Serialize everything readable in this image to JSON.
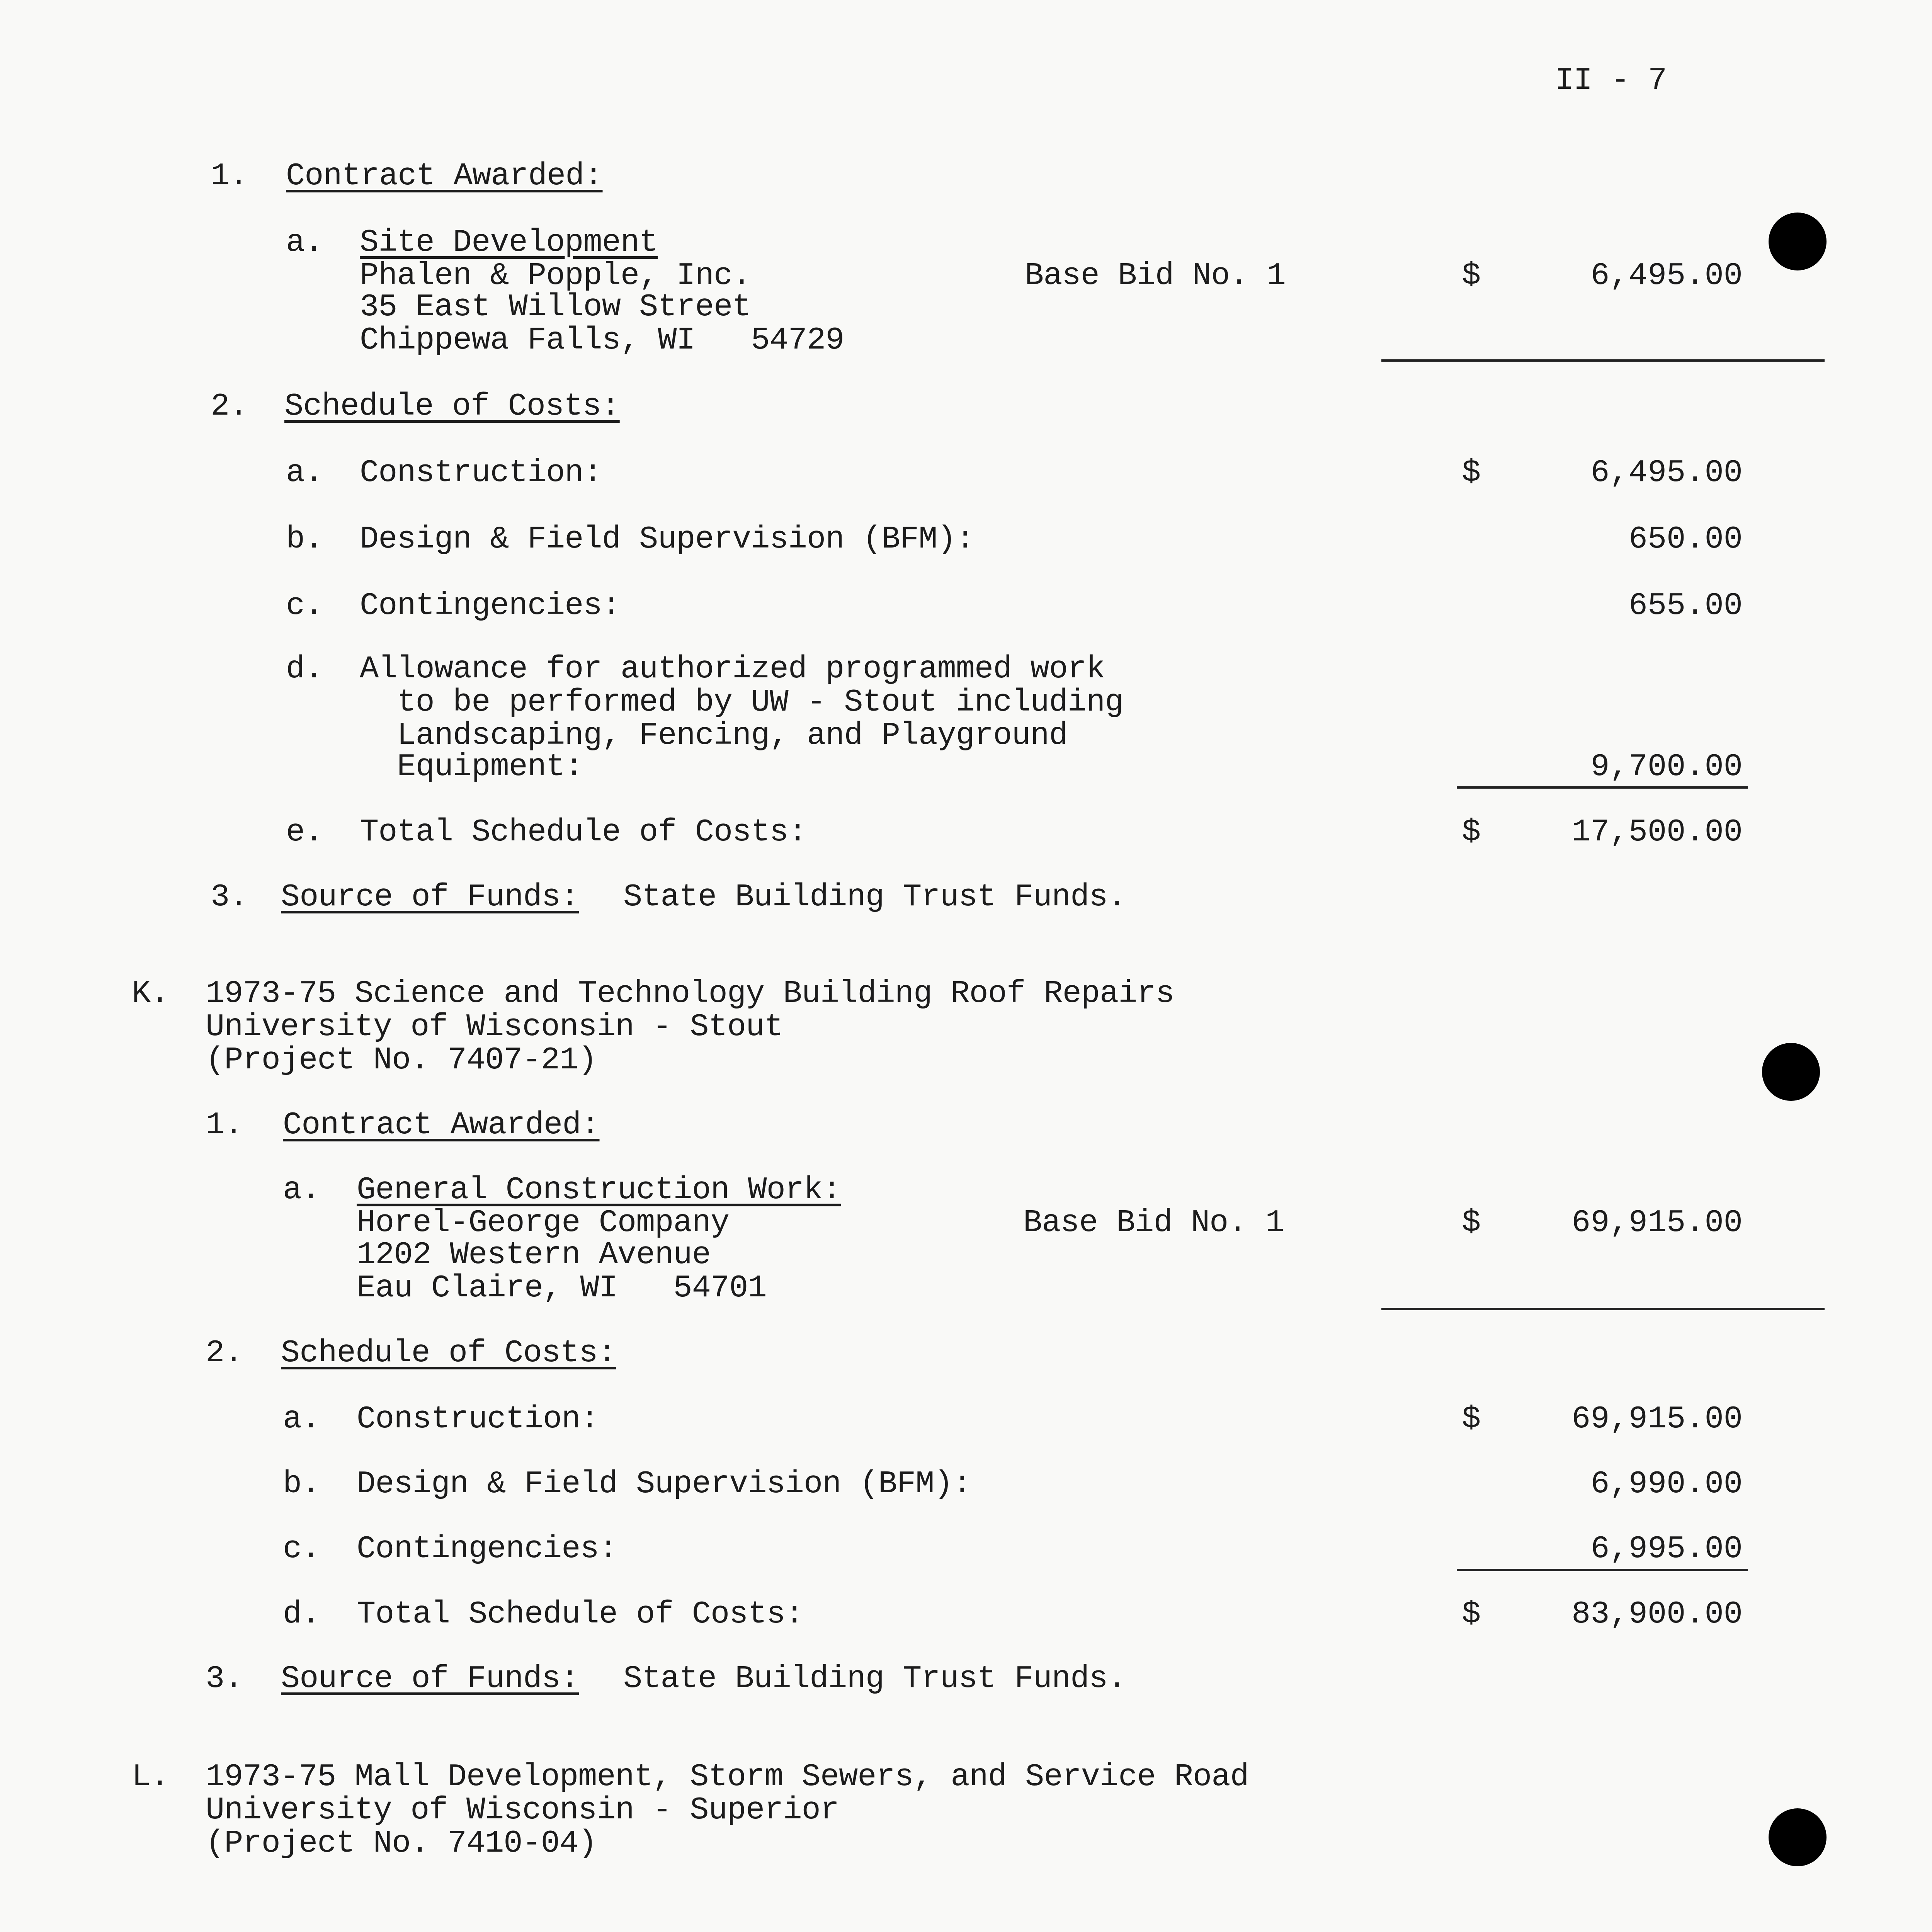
{
  "page_number": "II - 7",
  "j": {
    "c1_num": "1.",
    "c1_label": "Contract Awarded:",
    "a_letter": "a.",
    "a_title": "Site Development",
    "contractor": "Phalen & Popple, Inc.",
    "address1": "35 East Willow Street",
    "address2": "Chippewa Falls, WI   54729",
    "bid_label": "Base Bid No. 1",
    "dollar": "$",
    "bid_amount": "6,495.00",
    "c2_num": "2.",
    "c2_label": "Schedule of Costs:",
    "costs": [
      {
        "letter": "a.",
        "label": "Construction:",
        "dollar": "$",
        "amount": "6,495.00"
      },
      {
        "letter": "b.",
        "label": "Design & Field Supervision (BFM):",
        "amount": "650.00"
      },
      {
        "letter": "c.",
        "label": "Contingencies:",
        "amount": "655.00"
      },
      {
        "letter": "d.",
        "lines": [
          "Allowance for authorized programmed work",
          "  to be performed by UW - Stout including",
          "  Landscaping, Fencing, and Playground",
          "  Equipment:"
        ],
        "amount": "9,700.00"
      },
      {
        "letter": "e.",
        "label": "Total Schedule of Costs:",
        "dollar": "$",
        "amount": "17,500.00"
      }
    ],
    "c3_num": "3.",
    "c3_label": "Source of Funds:",
    "c3_value": "State Building Trust Funds."
  },
  "k": {
    "letter": "K.",
    "title_lines": [
      "1973-75 Science and Technology Building Roof Repairs",
      "University of Wisconsin - Stout",
      "(Project No. 7407-21)"
    ],
    "c1_num": "1.",
    "c1_label": "Contract Awarded:",
    "a_letter": "a.",
    "a_title": "General Construction Work:",
    "contractor": "Horel-George Company",
    "address1": "1202 Western Avenue",
    "address2": "Eau Claire, WI   54701",
    "bid_label": "Base Bid No. 1",
    "dollar": "$",
    "bid_amount": "69,915.00",
    "c2_num": "2.",
    "c2_label": "Schedule of Costs:",
    "costs": [
      {
        "letter": "a.",
        "label": "Construction:",
        "dollar": "$",
        "amount": "69,915.00"
      },
      {
        "letter": "b.",
        "label": "Design & Field Supervision (BFM):",
        "amount": "6,990.00"
      },
      {
        "letter": "c.",
        "label": "Contingencies:",
        "amount": "6,995.00"
      },
      {
        "letter": "d.",
        "label": "Total Schedule of Costs:",
        "dollar": "$",
        "amount": "83,900.00"
      }
    ],
    "c3_num": "3.",
    "c3_label": "Source of Funds:",
    "c3_value": "State Building Trust Funds."
  },
  "l": {
    "letter": "L.",
    "title_lines": [
      "1973-75 Mall Development, Storm Sewers, and Service Road",
      "University of Wisconsin - Superior",
      "(Project No. 7410-04)"
    ]
  }
}
